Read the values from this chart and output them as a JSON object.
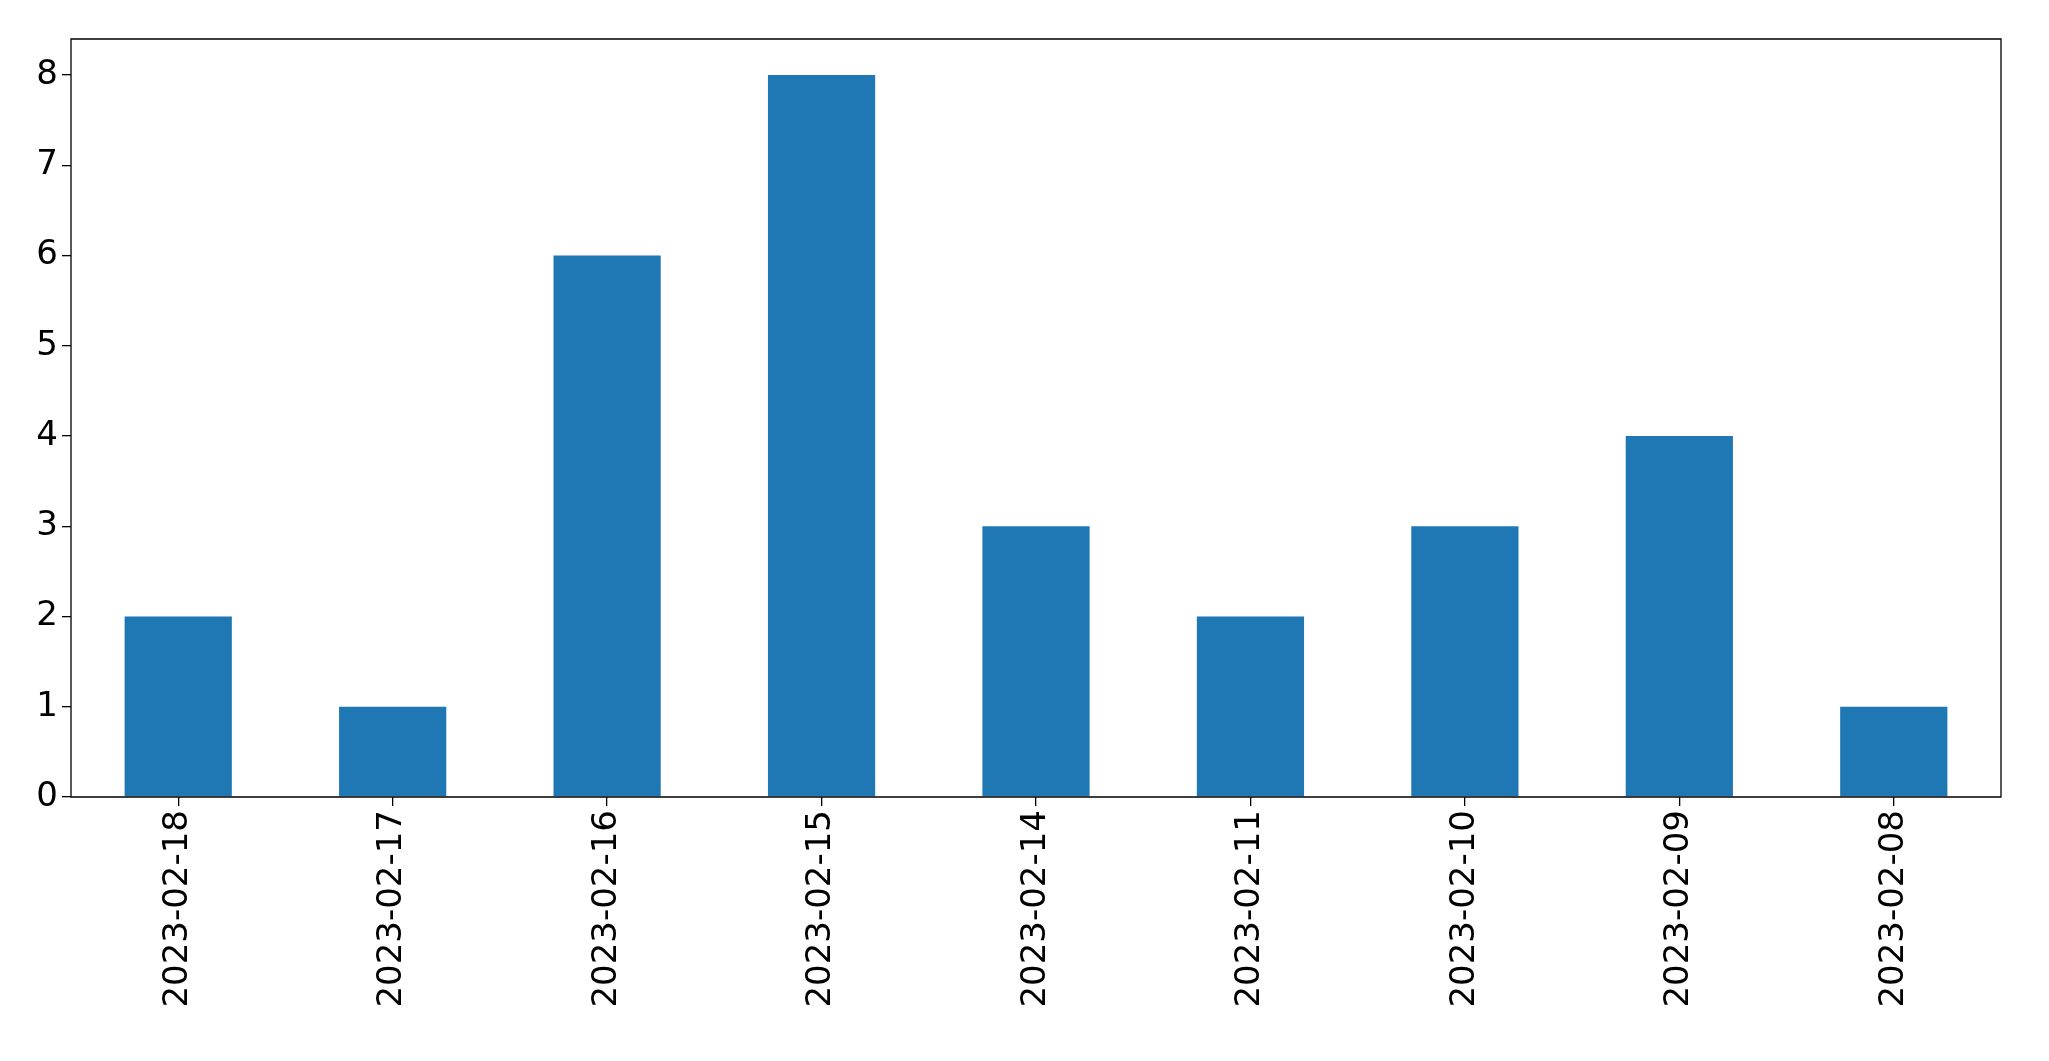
{
  "chart_data": {
    "type": "bar",
    "categories": [
      "2023-02-18",
      "2023-02-17",
      "2023-02-16",
      "2023-02-15",
      "2023-02-14",
      "2023-02-11",
      "2023-02-10",
      "2023-02-09",
      "2023-02-08"
    ],
    "values": [
      2,
      1,
      6,
      8,
      3,
      2,
      3,
      4,
      1
    ],
    "color": "#1f77b4",
    "ylim": [
      0,
      8.4
    ],
    "yticks": [
      0,
      1,
      2,
      3,
      4,
      5,
      6,
      7,
      8
    ],
    "grid": false
  }
}
